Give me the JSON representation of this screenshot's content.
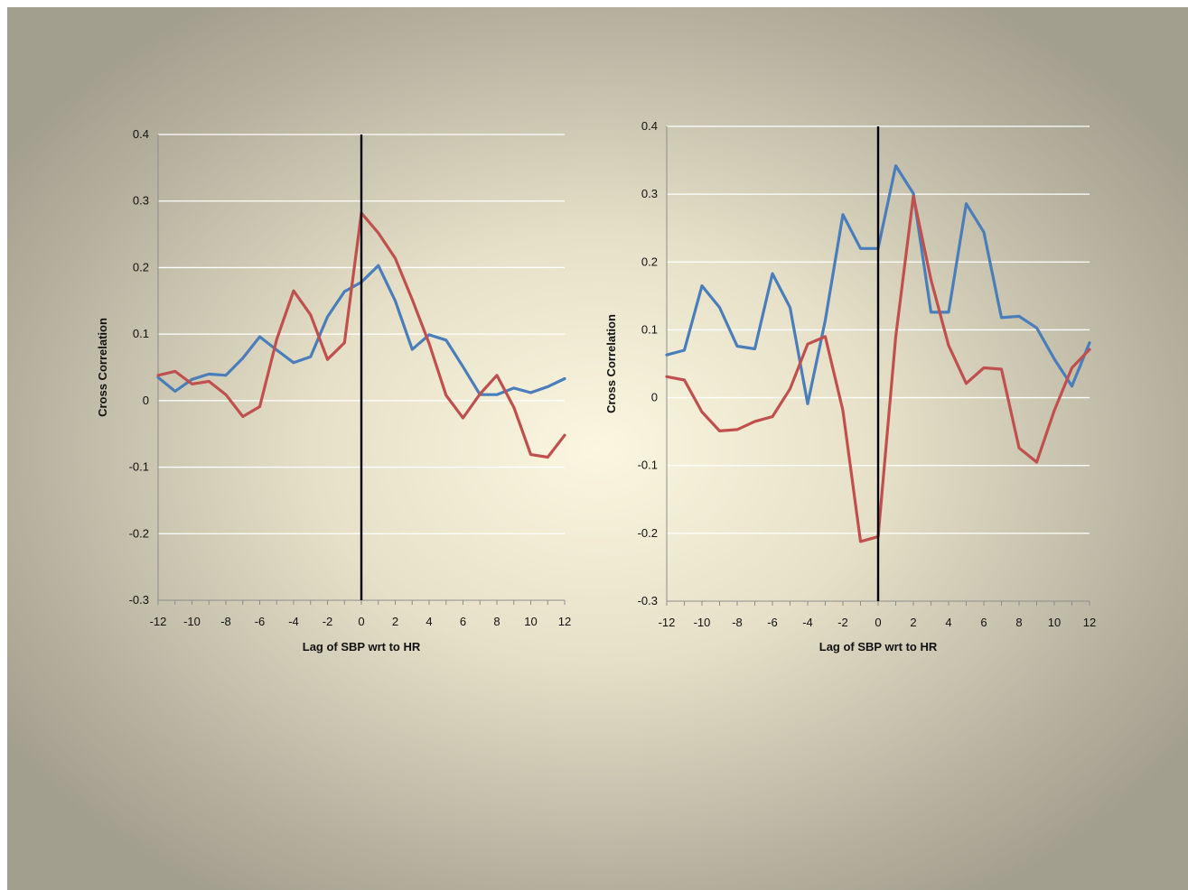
{
  "chart_data": [
    {
      "type": "line",
      "xlabel": "Lag of SBP  wrt to HR",
      "ylabel": "Cross Correlation",
      "xlim": [
        -12,
        12
      ],
      "ylim": [
        -0.3,
        0.4
      ],
      "xticks": [
        -12,
        -10,
        -8,
        -6,
        -4,
        -2,
        0,
        2,
        4,
        6,
        8,
        10,
        12
      ],
      "yticks": [
        -0.3,
        -0.2,
        -0.1,
        0,
        0.1,
        0.2,
        0.3,
        0.4
      ],
      "grid": true,
      "vline_x": 0,
      "x": [
        -12,
        -11,
        -10,
        -9,
        -8,
        -7,
        -6,
        -5,
        -4,
        -3,
        -2,
        -1,
        0,
        1,
        2,
        3,
        4,
        5,
        6,
        7,
        8,
        9,
        10,
        11,
        12
      ],
      "series": [
        {
          "color": "#4a7ebb",
          "values": [
            0.035,
            0.014,
            0.032,
            0.04,
            0.038,
            0.064,
            0.096,
            0.076,
            0.057,
            0.066,
            0.126,
            0.164,
            0.178,
            0.203,
            0.15,
            0.077,
            0.099,
            0.091,
            0.051,
            0.009,
            0.009,
            0.019,
            0.012,
            0.021,
            0.033
          ]
        },
        {
          "color": "#c0504d",
          "values": [
            0.038,
            0.044,
            0.025,
            0.029,
            0.009,
            -0.024,
            -0.009,
            0.092,
            0.165,
            0.129,
            0.062,
            0.087,
            0.282,
            0.252,
            0.214,
            0.152,
            0.086,
            0.008,
            -0.026,
            0.01,
            0.038,
            -0.01,
            -0.081,
            -0.085,
            -0.052
          ]
        }
      ]
    },
    {
      "type": "line",
      "xlabel": "Lag of SBP  wrt to HR",
      "ylabel": "Cross Correlation",
      "xlim": [
        -12,
        12
      ],
      "ylim": [
        -0.3,
        0.4
      ],
      "xticks": [
        -12,
        -10,
        -8,
        -6,
        -4,
        -2,
        0,
        2,
        4,
        6,
        8,
        10,
        12
      ],
      "yticks": [
        -0.3,
        -0.2,
        -0.1,
        0,
        0.1,
        0.2,
        0.3,
        0.4
      ],
      "grid": true,
      "vline_x": 0,
      "x": [
        -12,
        -11,
        -10,
        -9,
        -8,
        -7,
        -6,
        -5,
        -4,
        -3,
        -2,
        -1,
        0,
        1,
        2,
        3,
        4,
        5,
        6,
        7,
        8,
        9,
        10,
        11,
        12
      ],
      "series": [
        {
          "color": "#4a7ebb",
          "values": [
            0.063,
            0.07,
            0.165,
            0.133,
            0.076,
            0.072,
            0.183,
            0.133,
            -0.009,
            0.114,
            0.27,
            0.22,
            0.22,
            0.342,
            0.301,
            0.126,
            0.126,
            0.286,
            0.244,
            0.118,
            0.12,
            0.103,
            0.057,
            0.017,
            0.081
          ]
        },
        {
          "color": "#c0504d",
          "values": [
            0.031,
            0.026,
            -0.021,
            -0.049,
            -0.047,
            -0.035,
            -0.028,
            0.013,
            0.079,
            0.09,
            -0.019,
            -0.212,
            -0.205,
            0.09,
            0.297,
            0.174,
            0.077,
            0.021,
            0.044,
            0.042,
            -0.074,
            -0.095,
            -0.019,
            0.044,
            0.071
          ]
        }
      ]
    }
  ]
}
